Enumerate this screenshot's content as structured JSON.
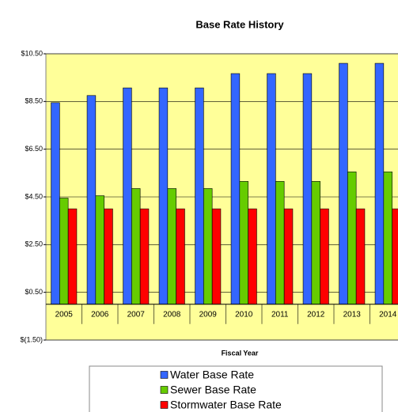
{
  "chart_data": {
    "type": "bar",
    "title": "Base Rate History",
    "x_label": "Fiscal Year",
    "categories": [
      "2005",
      "2006",
      "2007",
      "2008",
      "2009",
      "2010",
      "2011",
      "2012",
      "2013",
      "2014"
    ],
    "series": [
      {
        "name": "Water Base Rate",
        "color": "#3366ff",
        "values": [
          8.45,
          8.75,
          9.07,
          9.07,
          9.07,
          9.67,
          9.67,
          9.67,
          10.1,
          10.1
        ]
      },
      {
        "name": "Sewer Base Rate",
        "color": "#66cc00",
        "values": [
          4.45,
          4.55,
          4.85,
          4.85,
          4.85,
          5.15,
          5.15,
          5.15,
          5.55,
          5.55
        ]
      },
      {
        "name": "Stormwater Base Rate",
        "color": "#ff0000",
        "values": [
          4.0,
          4.0,
          4.0,
          4.0,
          4.0,
          4.0,
          4.0,
          4.0,
          4.0,
          4.0
        ]
      }
    ],
    "ylim": [
      -1.5,
      10.5
    ],
    "yticks": [
      {
        "value": -1.5,
        "label": "$(1.50)"
      },
      {
        "value": 0.5,
        "label": "$0.50"
      },
      {
        "value": 2.5,
        "label": "$2.50"
      },
      {
        "value": 4.5,
        "label": "$4.50"
      },
      {
        "value": 6.5,
        "label": "$6.50"
      },
      {
        "value": 8.5,
        "label": "$8.50"
      },
      {
        "value": 10.5,
        "label": "$10.50"
      }
    ],
    "grid": true,
    "legend": "bottom",
    "background": "#ffff99"
  }
}
